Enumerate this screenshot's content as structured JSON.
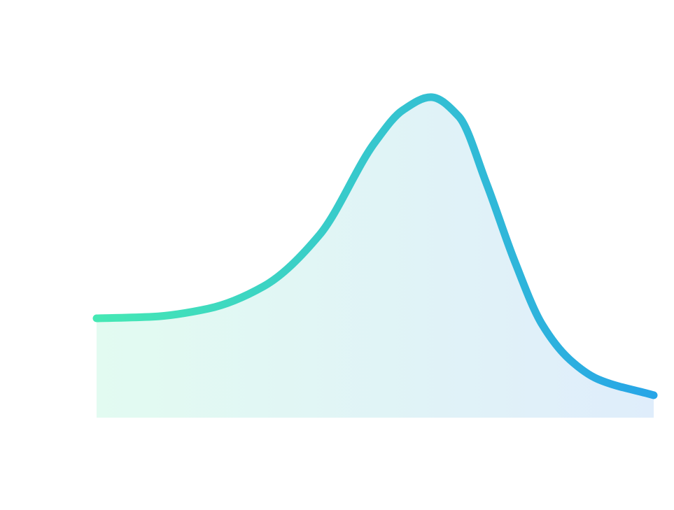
{
  "chart_data": {
    "type": "area",
    "title": "",
    "xlabel": "",
    "ylabel": "",
    "grid": false,
    "legend": "none",
    "x": [
      0,
      10,
      20,
      30,
      40,
      50,
      55,
      60,
      65,
      70,
      75,
      80,
      85,
      90,
      100
    ],
    "y": [
      31,
      31.5,
      34,
      41,
      57,
      86,
      96,
      100,
      94,
      73,
      49,
      29,
      18,
      12,
      7
    ],
    "xlim": [
      0,
      100
    ],
    "ylim": [
      0,
      105
    ],
    "colors": {
      "line_start": "#45e8b4",
      "line_end": "#27a5e7",
      "fill_start": "#e2fbf1",
      "fill_end": "#dfedfb"
    }
  }
}
